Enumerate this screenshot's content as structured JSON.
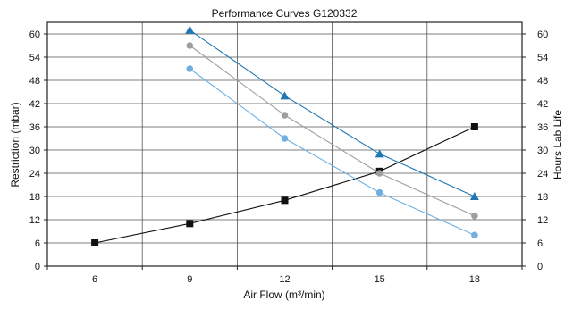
{
  "chart_data": {
    "type": "line",
    "title": "Performance Curves G120332",
    "xlabel": "Air Flow (m³/min)",
    "ylabel": "Restriction (mbar)",
    "y2label": "Hours Lab Life",
    "xlim": [
      4.5,
      19.5
    ],
    "ylim": [
      0,
      63
    ],
    "y2lim": [
      0,
      63
    ],
    "x_ticks": [
      6,
      9,
      12,
      15,
      18
    ],
    "x_minor_ticks": [
      4.5,
      7.5,
      10.5,
      13.5,
      16.5,
      19.5
    ],
    "y_ticks": [
      0,
      6,
      12,
      18,
      24,
      30,
      36,
      42,
      48,
      54,
      60
    ],
    "y2_ticks": [
      0,
      6,
      12,
      18,
      24,
      30,
      36,
      42,
      48,
      54,
      60
    ],
    "grid": true,
    "series": [
      {
        "axis": "left",
        "color": "#111111",
        "marker": "square",
        "x": [
          6,
          9,
          12,
          15,
          18
        ],
        "y": [
          6,
          11,
          17,
          24.5,
          36
        ]
      },
      {
        "axis": "right",
        "color": "#1f78b4",
        "marker": "triangle",
        "x": [
          9,
          12,
          15,
          18
        ],
        "y": [
          61,
          44,
          29,
          18
        ]
      },
      {
        "axis": "right",
        "color": "#9e9e9e",
        "marker": "circle",
        "x": [
          9,
          12,
          15,
          18
        ],
        "y": [
          57,
          39,
          24,
          13
        ]
      },
      {
        "axis": "right",
        "color": "#6fb0e0",
        "marker": "circle",
        "x": [
          9,
          12,
          15,
          18
        ],
        "y": [
          51,
          33,
          19,
          8
        ]
      }
    ]
  }
}
